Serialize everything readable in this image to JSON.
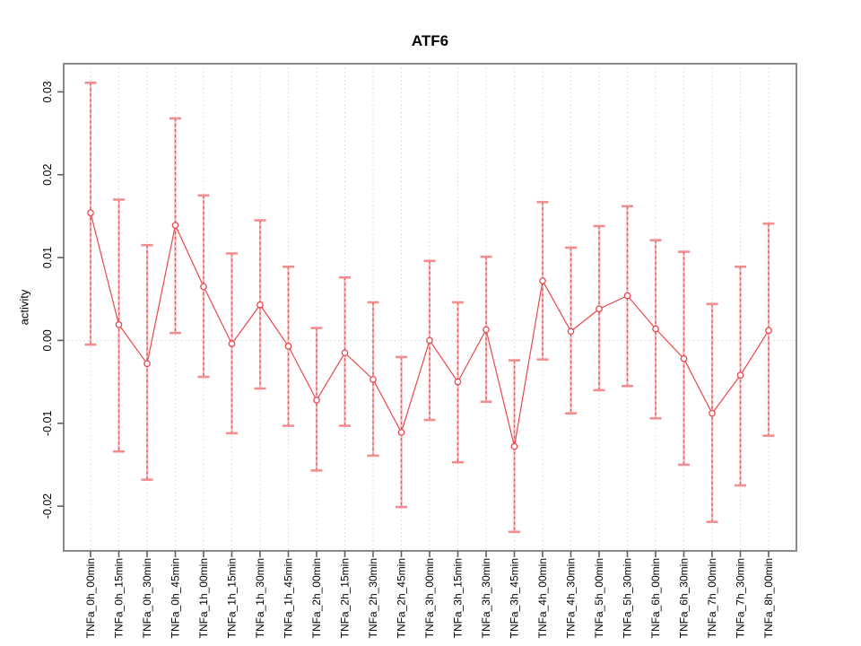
{
  "title": "ATF6",
  "chart_data": {
    "type": "line",
    "title": "ATF6",
    "xlabel": "",
    "ylabel": "activity",
    "ylim": [
      -0.0254,
      0.0334
    ],
    "grid": "dotted vertical gridline per category, dotted horizontal line at 0",
    "legend": "none",
    "yticks": [
      {
        "value": 0.03,
        "label": "0.03"
      },
      {
        "value": 0.02,
        "label": "0.02"
      },
      {
        "value": 0.01,
        "label": "0.01"
      },
      {
        "value": 0.0,
        "label": "0.00"
      },
      {
        "value": -0.01,
        "label": "-0.01"
      },
      {
        "value": -0.02,
        "label": "-0.02"
      }
    ],
    "categories": [
      "TNFa_0h_00min",
      "TNFa_0h_15min",
      "TNFa_0h_30min",
      "TNFa_0h_45min",
      "TNFa_1h_00min",
      "TNFa_1h_15min",
      "TNFa_1h_30min",
      "TNFa_1h_45min",
      "TNFa_2h_00min",
      "TNFa_2h_15min",
      "TNFa_2h_30min",
      "TNFa_2h_45min",
      "TNFa_3h_00min",
      "TNFa_3h_15min",
      "TNFa_3h_30min",
      "TNFa_3h_45min",
      "TNFa_4h_00min",
      "TNFa_4h_30min",
      "TNFa_5h_00min",
      "TNFa_5h_30min",
      "TNFa_6h_00min",
      "TNFa_6h_30min",
      "TNFa_7h_00min",
      "TNFa_7h_30min",
      "TNFa_8h_00min"
    ],
    "series": [
      {
        "name": "activity",
        "marker": "open-circle",
        "values": [
          0.0154,
          0.0019,
          -0.0028,
          0.0139,
          0.0065,
          -0.0004,
          0.0043,
          -0.0007,
          -0.0072,
          -0.0015,
          -0.0047,
          -0.0111,
          0.0,
          -0.005,
          0.0013,
          -0.0128,
          0.0072,
          0.0011,
          0.0038,
          0.0054,
          0.0014,
          -0.0022,
          -0.0088,
          -0.0042,
          0.0012
        ],
        "error_high": [
          0.0311,
          0.017,
          0.0115,
          0.0268,
          0.0175,
          0.0105,
          0.0145,
          0.0089,
          0.0015,
          0.0076,
          0.0046,
          -0.002,
          0.0096,
          0.0046,
          0.0101,
          -0.0024,
          0.0167,
          0.0112,
          0.0138,
          0.0162,
          0.0121,
          0.0107,
          0.0044,
          0.0089,
          0.0141
        ],
        "error_low": [
          -0.0005,
          -0.0134,
          -0.0168,
          0.0009,
          -0.0044,
          -0.0112,
          -0.0058,
          -0.0103,
          -0.0157,
          -0.0103,
          -0.0139,
          -0.0201,
          -0.0096,
          -0.0147,
          -0.0074,
          -0.0231,
          -0.0023,
          -0.0088,
          -0.006,
          -0.0055,
          -0.0094,
          -0.015,
          -0.0219,
          -0.0175,
          -0.0115
        ]
      }
    ],
    "colors": {
      "series_line": "#e8484d",
      "marker_stroke": "#e8484d",
      "error_bar_light": "#f9b4b6",
      "error_bar_dark": "#e05a5c",
      "error_cap": "#f38e90",
      "grid": "#d6d6d6",
      "zero_line": "#d6d6d6",
      "box": "#8a8a8a",
      "tick": "#5f5f5f",
      "text": "#000000",
      "background": "#ffffff"
    }
  }
}
